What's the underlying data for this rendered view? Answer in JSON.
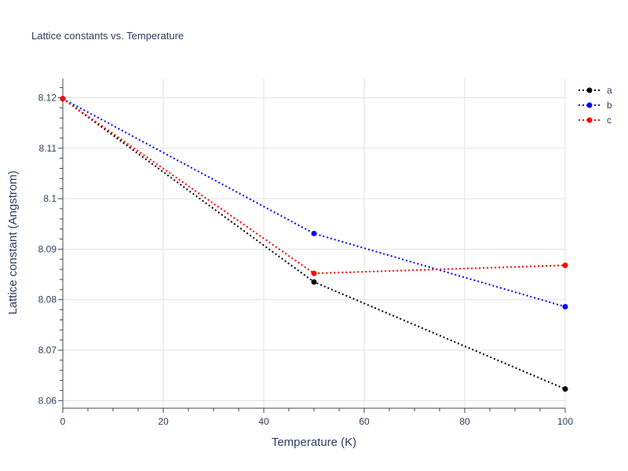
{
  "chart_data": {
    "type": "line",
    "title": "Lattice constants vs. Temperature",
    "xlabel": "Temperature (K)",
    "ylabel": "Lattice constant (Angstrom)",
    "xlim": [
      0,
      100
    ],
    "ylim": [
      8.0585,
      8.1238
    ],
    "xticks": [
      0,
      20,
      40,
      60,
      80,
      100
    ],
    "yticks": [
      8.06,
      8.07,
      8.08,
      8.09,
      8.1,
      8.11,
      8.12
    ],
    "ytick_labels": [
      "8.06",
      "8.07",
      "8.08",
      "8.09",
      "8.1",
      "8.11",
      "8.12"
    ],
    "grid": true,
    "legend_position": "top-right",
    "x": [
      0,
      50,
      100
    ],
    "series": [
      {
        "name": "a",
        "color": "#000000",
        "line_style": "dotted",
        "values": [
          8.1198,
          8.0835,
          8.0623
        ]
      },
      {
        "name": "b",
        "color": "#0000ff",
        "line_style": "dotted",
        "values": [
          8.1198,
          8.0931,
          8.0786
        ]
      },
      {
        "name": "c",
        "color": "#ff0000",
        "line_style": "dotted",
        "values": [
          8.1198,
          8.0852,
          8.0868
        ]
      }
    ]
  }
}
